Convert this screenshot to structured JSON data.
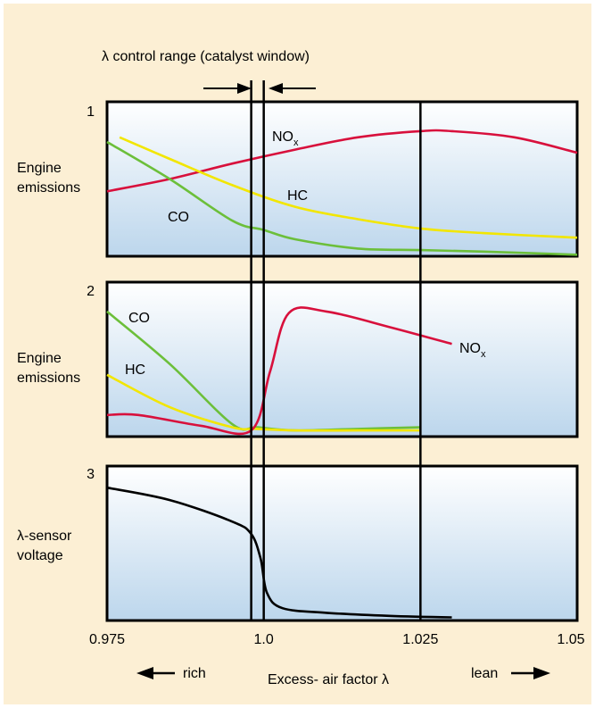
{
  "title": "λ control range (catalyst window)",
  "panels": [
    {
      "number": "1",
      "ylabel": [
        "Engine",
        "emissions"
      ],
      "series": [
        {
          "name": "NO",
          "sub": "x",
          "color": "#d8103c",
          "points": [
            [
              0.975,
              0.42
            ],
            [
              0.985,
              0.5
            ],
            [
              0.995,
              0.6
            ],
            [
              1.005,
              0.69
            ],
            [
              1.015,
              0.77
            ],
            [
              1.025,
              0.81
            ],
            [
              1.03,
              0.81
            ],
            [
              1.04,
              0.77
            ],
            [
              1.05,
              0.67
            ]
          ]
        },
        {
          "name": "HC",
          "color": "#f2e600",
          "points": [
            [
              0.977,
              0.77
            ],
            [
              0.985,
              0.63
            ],
            [
              0.995,
              0.46
            ],
            [
              1.005,
              0.32
            ],
            [
              1.015,
              0.24
            ],
            [
              1.025,
              0.18
            ],
            [
              1.035,
              0.15
            ],
            [
              1.05,
              0.12
            ]
          ]
        },
        {
          "name": "CO",
          "color": "#6cbf3a",
          "points": [
            [
              0.975,
              0.74
            ],
            [
              0.985,
              0.5
            ],
            [
              0.995,
              0.23
            ],
            [
              1.0,
              0.17
            ],
            [
              1.005,
              0.11
            ],
            [
              1.015,
              0.05
            ],
            [
              1.025,
              0.04
            ],
            [
              1.035,
              0.03
            ],
            [
              1.05,
              0.01
            ]
          ]
        }
      ]
    },
    {
      "number": "2",
      "ylabel": [
        "Engine",
        "emissions"
      ],
      "series": [
        {
          "name": "CO",
          "color": "#6cbf3a",
          "points": [
            [
              0.975,
              0.81
            ],
            [
              0.985,
              0.47
            ],
            [
              0.995,
              0.08
            ],
            [
              0.999,
              0.06
            ],
            [
              1.005,
              0.04
            ],
            [
              1.015,
              0.05
            ],
            [
              1.025,
              0.06
            ]
          ]
        },
        {
          "name": "HC",
          "color": "#f2e600",
          "points": [
            [
              0.975,
              0.4
            ],
            [
              0.985,
              0.19
            ],
            [
              0.995,
              0.06
            ],
            [
              0.999,
              0.05
            ],
            [
              1.005,
              0.04
            ],
            [
              1.015,
              0.04
            ],
            [
              1.025,
              0.04
            ]
          ]
        },
        {
          "name": "NO",
          "sub": "x",
          "color": "#d8103c",
          "points": [
            [
              0.975,
              0.14
            ],
            [
              0.98,
              0.14
            ],
            [
              0.99,
              0.07
            ],
            [
              0.998,
              0.04
            ],
            [
              1.001,
              0.42
            ],
            [
              1.004,
              0.8
            ],
            [
              1.01,
              0.81
            ],
            [
              1.02,
              0.71
            ],
            [
              1.03,
              0.6
            ]
          ]
        }
      ]
    },
    {
      "number": "3",
      "ylabel": [
        "λ-sensor",
        "voltage"
      ],
      "series": [
        {
          "name": "",
          "color": "#000000",
          "points": [
            [
              0.975,
              0.86
            ],
            [
              0.985,
              0.78
            ],
            [
              0.995,
              0.64
            ],
            [
              0.998,
              0.56
            ],
            [
              0.9995,
              0.4
            ],
            [
              1.0005,
              0.18
            ],
            [
              1.003,
              0.08
            ],
            [
              1.01,
              0.05
            ],
            [
              1.02,
              0.03
            ],
            [
              1.03,
              0.02
            ]
          ]
        }
      ]
    }
  ],
  "x_ticks": [
    "0.975",
    "1.0",
    "1.025",
    "1.05"
  ],
  "x_tick_values": [
    0.975,
    1.0,
    1.025,
    1.05
  ],
  "window_lines": [
    0.998,
    1.0,
    1.025
  ],
  "xrange": [
    0.975,
    1.05
  ],
  "yrange": [
    0,
    1
  ],
  "xlabel": "Excess- air factor λ",
  "rich": "rich",
  "lean": "lean",
  "colors": {
    "page_bg": "#fcefd4",
    "panel_top": "#ffffff",
    "panel_bottom": "#bcd6ec",
    "frame": "#000000"
  }
}
